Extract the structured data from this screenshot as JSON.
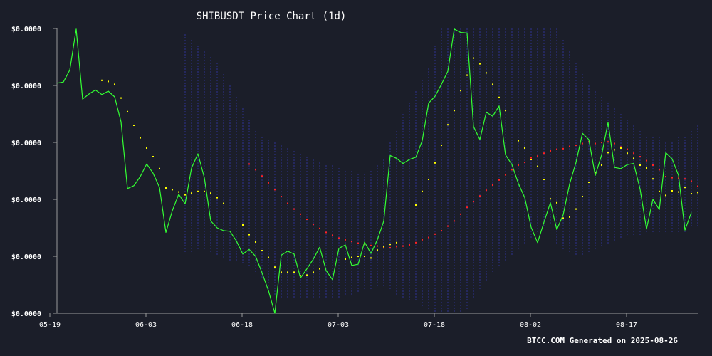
{
  "chart_data": {
    "type": "line",
    "title": "SHIBUSDT Price Chart (1d)",
    "footer": "BTCC.COM Generated on 2025-08-26",
    "x": {
      "start_date": "2025-05-19",
      "ticks": [
        {
          "day": 0,
          "label": "05-19"
        },
        {
          "day": 15,
          "label": "06-03"
        },
        {
          "day": 30,
          "label": "06-18"
        },
        {
          "day": 45,
          "label": "07-03"
        },
        {
          "day": 60,
          "label": "07-18"
        },
        {
          "day": 75,
          "label": "08-02"
        },
        {
          "day": 90,
          "label": "08-17"
        }
      ],
      "range": [
        0,
        100
      ]
    },
    "y": {
      "range": [
        0,
        5
      ],
      "ticks": [
        {
          "v": 0,
          "label": "$0.0000"
        },
        {
          "v": 1,
          "label": "$0.0000"
        },
        {
          "v": 2,
          "label": "$0.0000"
        },
        {
          "v": 3,
          "label": "$0.0000"
        },
        {
          "v": 4,
          "label": "$0.0000"
        },
        {
          "v": 5,
          "label": "$0.0000"
        }
      ]
    },
    "series": [
      {
        "name": "",
        "kind": "price",
        "color": "#33ff33",
        "values": [
          4.04,
          4.06,
          4.27,
          4.99,
          3.76,
          3.85,
          3.92,
          3.84,
          3.9,
          3.8,
          3.36,
          2.19,
          2.24,
          2.4,
          2.62,
          2.46,
          2.21,
          1.42,
          1.8,
          2.09,
          1.92,
          2.55,
          2.8,
          2.38,
          1.62,
          1.5,
          1.45,
          1.44,
          1.27,
          1.04,
          1.12,
          1.0,
          0.71,
          0.4,
          0.0,
          1.02,
          1.09,
          1.04,
          0.62,
          0.78,
          0.95,
          1.16,
          0.75,
          0.59,
          1.14,
          1.2,
          0.84,
          0.86,
          1.25,
          1.05,
          1.29,
          1.62,
          2.77,
          2.72,
          2.63,
          2.7,
          2.74,
          3.03,
          3.69,
          3.81,
          4.02,
          4.25,
          4.99,
          4.93,
          4.92,
          3.28,
          3.05,
          3.53,
          3.46,
          3.64,
          2.78,
          2.61,
          2.28,
          2.03,
          1.51,
          1.24,
          1.6,
          1.94,
          1.47,
          1.73,
          2.27,
          2.65,
          3.16,
          3.05,
          2.42,
          2.78,
          3.35,
          2.56,
          2.54,
          2.61,
          2.63,
          2.18,
          1.48,
          2.0,
          1.82,
          2.82,
          2.71,
          2.42,
          1.46,
          1.77
        ]
      },
      {
        "name": "",
        "kind": "sar-below",
        "color": "#ffff00",
        "points": [
          [
            7,
            4.09
          ],
          [
            8,
            4.07
          ],
          [
            9,
            4.02
          ],
          [
            10,
            3.78
          ],
          [
            11,
            3.54
          ],
          [
            12,
            3.3
          ],
          [
            13,
            3.08
          ],
          [
            14,
            2.9
          ],
          [
            15,
            2.75
          ],
          [
            16,
            2.54
          ],
          [
            17,
            2.2
          ],
          [
            18,
            2.17
          ],
          [
            19,
            2.13
          ],
          [
            20,
            2.08
          ],
          [
            21,
            2.11
          ],
          [
            22,
            2.14
          ],
          [
            23,
            2.14
          ],
          [
            24,
            2.11
          ],
          [
            25,
            2.03
          ],
          [
            26,
            1.93
          ],
          [
            29,
            1.55
          ],
          [
            30,
            1.38
          ],
          [
            31,
            1.25
          ],
          [
            32,
            1.1
          ],
          [
            33,
            0.98
          ],
          [
            34,
            0.81
          ],
          [
            35,
            0.72
          ],
          [
            36,
            0.72
          ],
          [
            37,
            0.72
          ],
          [
            38,
            0.66
          ],
          [
            39,
            0.67
          ],
          [
            40,
            0.72
          ],
          [
            41,
            0.78
          ],
          [
            45,
            0.95
          ],
          [
            46,
            0.98
          ],
          [
            47,
            1.0
          ],
          [
            48,
            1.0
          ],
          [
            49,
            0.97
          ],
          [
            50,
            1.11
          ],
          [
            51,
            1.17
          ],
          [
            52,
            1.21
          ],
          [
            53,
            1.24
          ],
          [
            56,
            1.9
          ],
          [
            57,
            2.14
          ],
          [
            58,
            2.35
          ],
          [
            59,
            2.64
          ],
          [
            60,
            2.95
          ],
          [
            61,
            3.31
          ],
          [
            62,
            3.56
          ],
          [
            63,
            3.91
          ],
          [
            64,
            4.18
          ],
          [
            65,
            4.48
          ],
          [
            66,
            4.38
          ],
          [
            67,
            4.22
          ],
          [
            68,
            4.02
          ],
          [
            69,
            3.79
          ],
          [
            70,
            3.56
          ],
          [
            72,
            3.03
          ],
          [
            73,
            2.9
          ],
          [
            74,
            2.7
          ],
          [
            75,
            2.58
          ],
          [
            76,
            2.35
          ],
          [
            77,
            2.01
          ],
          [
            78,
            1.94
          ],
          [
            79,
            1.67
          ],
          [
            80,
            1.69
          ],
          [
            81,
            1.83
          ],
          [
            82,
            2.05
          ],
          [
            83,
            2.3
          ],
          [
            84,
            2.47
          ],
          [
            85,
            2.6
          ],
          [
            86,
            2.82
          ],
          [
            87,
            2.87
          ],
          [
            88,
            2.9
          ],
          [
            89,
            2.81
          ],
          [
            90,
            2.72
          ],
          [
            91,
            2.6
          ],
          [
            92,
            2.55
          ],
          [
            93,
            2.36
          ],
          [
            94,
            2.14
          ],
          [
            95,
            2.07
          ],
          [
            96,
            2.15
          ],
          [
            97,
            2.13
          ],
          [
            98,
            2.21
          ],
          [
            99,
            2.1
          ],
          [
            100,
            2.12
          ]
        ]
      },
      {
        "name": "",
        "kind": "sar-above",
        "color": "#ff2222",
        "points": [
          [
            30,
            2.62
          ],
          [
            31,
            2.52
          ],
          [
            32,
            2.41
          ],
          [
            33,
            2.29
          ],
          [
            34,
            2.17
          ],
          [
            35,
            2.05
          ],
          [
            36,
            1.93
          ],
          [
            37,
            1.83
          ],
          [
            38,
            1.74
          ],
          [
            39,
            1.65
          ],
          [
            40,
            1.56
          ],
          [
            41,
            1.49
          ],
          [
            42,
            1.42
          ],
          [
            43,
            1.37
          ],
          [
            44,
            1.32
          ],
          [
            45,
            1.29
          ],
          [
            46,
            1.26
          ],
          [
            47,
            1.23
          ],
          [
            48,
            1.21
          ],
          [
            49,
            1.19
          ],
          [
            50,
            1.18
          ],
          [
            51,
            1.15
          ],
          [
            52,
            1.15
          ],
          [
            53,
            1.17
          ],
          [
            54,
            1.18
          ],
          [
            55,
            1.2
          ],
          [
            56,
            1.24
          ],
          [
            57,
            1.29
          ],
          [
            58,
            1.33
          ],
          [
            59,
            1.39
          ],
          [
            60,
            1.45
          ],
          [
            61,
            1.53
          ],
          [
            62,
            1.62
          ],
          [
            63,
            1.74
          ],
          [
            64,
            1.86
          ],
          [
            65,
            1.96
          ],
          [
            66,
            2.06
          ],
          [
            67,
            2.16
          ],
          [
            68,
            2.25
          ],
          [
            69,
            2.34
          ],
          [
            70,
            2.43
          ],
          [
            71,
            2.52
          ],
          [
            72,
            2.6
          ],
          [
            73,
            2.65
          ],
          [
            74,
            2.73
          ],
          [
            75,
            2.76
          ],
          [
            76,
            2.81
          ],
          [
            77,
            2.85
          ],
          [
            78,
            2.88
          ],
          [
            79,
            2.89
          ],
          [
            80,
            2.93
          ],
          [
            81,
            2.95
          ],
          [
            82,
            2.98
          ],
          [
            83,
            3.01
          ],
          [
            84,
            2.98
          ],
          [
            85,
            3.0
          ],
          [
            86,
            3.01
          ],
          [
            87,
            2.98
          ],
          [
            88,
            2.92
          ],
          [
            89,
            2.88
          ],
          [
            90,
            2.81
          ],
          [
            91,
            2.75
          ],
          [
            92,
            2.68
          ],
          [
            93,
            2.6
          ],
          [
            94,
            2.52
          ],
          [
            95,
            2.4
          ],
          [
            96,
            2.38
          ],
          [
            97,
            2.37
          ],
          [
            98,
            2.36
          ],
          [
            99,
            2.32
          ],
          [
            100,
            2.23
          ]
        ]
      },
      {
        "name": "",
        "kind": "band",
        "color": "#2c2f80",
        "points": [
          [
            20,
            4.9,
            1.05
          ],
          [
            21,
            4.8,
            1.05
          ],
          [
            22,
            4.7,
            1.1
          ],
          [
            23,
            4.6,
            1.1
          ],
          [
            24,
            4.5,
            1.05
          ],
          [
            25,
            4.4,
            1.0
          ],
          [
            26,
            4.2,
            0.95
          ],
          [
            27,
            4.0,
            0.9
          ],
          [
            28,
            3.8,
            0.9
          ],
          [
            29,
            3.6,
            0.85
          ],
          [
            30,
            3.4,
            0.8
          ],
          [
            31,
            3.2,
            0.7
          ],
          [
            32,
            3.1,
            0.6
          ],
          [
            33,
            3.05,
            0.4
          ],
          [
            34,
            3.0,
            0.3
          ],
          [
            35,
            2.95,
            0.25
          ],
          [
            36,
            2.9,
            0.25
          ],
          [
            37,
            2.85,
            0.25
          ],
          [
            38,
            2.8,
            0.25
          ],
          [
            39,
            2.75,
            0.25
          ],
          [
            40,
            2.7,
            0.25
          ],
          [
            41,
            2.65,
            0.25
          ],
          [
            42,
            2.6,
            0.25
          ],
          [
            43,
            2.6,
            0.25
          ],
          [
            44,
            2.55,
            0.25
          ],
          [
            45,
            2.5,
            0.3
          ],
          [
            46,
            2.5,
            0.3
          ],
          [
            47,
            2.45,
            0.35
          ],
          [
            48,
            2.45,
            0.4
          ],
          [
            49,
            2.5,
            0.4
          ],
          [
            50,
            2.6,
            0.45
          ],
          [
            51,
            2.7,
            0.45
          ],
          [
            52,
            3.0,
            0.4
          ],
          [
            53,
            3.2,
            0.3
          ],
          [
            54,
            3.5,
            0.25
          ],
          [
            55,
            3.7,
            0.2
          ],
          [
            56,
            3.9,
            0.2
          ],
          [
            57,
            4.1,
            0.1
          ],
          [
            58,
            4.3,
            0.05
          ],
          [
            59,
            4.7,
            0.0
          ],
          [
            60,
            5.0,
            0.0
          ],
          [
            61,
            5.0,
            0.0
          ],
          [
            62,
            5.0,
            0.0
          ],
          [
            63,
            5.0,
            0.0
          ],
          [
            64,
            5.0,
            0.05
          ],
          [
            65,
            5.0,
            0.25
          ],
          [
            66,
            5.0,
            0.4
          ],
          [
            67,
            5.0,
            0.55
          ],
          [
            68,
            5.0,
            0.7
          ],
          [
            69,
            5.0,
            0.8
          ],
          [
            70,
            5.0,
            0.9
          ],
          [
            71,
            5.0,
            1.0
          ],
          [
            72,
            5.0,
            1.1
          ],
          [
            73,
            5.0,
            1.2
          ],
          [
            74,
            5.0,
            1.3
          ],
          [
            75,
            5.0,
            1.4
          ],
          [
            76,
            5.0,
            1.5
          ],
          [
            77,
            5.0,
            1.55
          ],
          [
            78,
            5.0,
            1.2
          ],
          [
            79,
            4.8,
            1.1
          ],
          [
            80,
            4.6,
            1.05
          ],
          [
            81,
            4.4,
            1.0
          ],
          [
            82,
            4.2,
            1.0
          ],
          [
            83,
            4.0,
            1.05
          ],
          [
            84,
            3.9,
            1.1
          ],
          [
            85,
            3.8,
            1.15
          ],
          [
            86,
            3.7,
            1.2
          ],
          [
            87,
            3.6,
            1.25
          ],
          [
            88,
            3.5,
            1.3
          ],
          [
            89,
            3.4,
            1.35
          ],
          [
            90,
            3.3,
            1.35
          ],
          [
            91,
            3.2,
            1.35
          ],
          [
            92,
            3.1,
            1.4
          ],
          [
            93,
            3.1,
            1.4
          ],
          [
            94,
            3.1,
            1.4
          ],
          [
            95,
            3.0,
            1.4
          ],
          [
            96,
            3.0,
            1.4
          ],
          [
            97,
            3.1,
            1.4
          ],
          [
            98,
            3.1,
            1.4
          ],
          [
            99,
            3.2,
            1.5
          ],
          [
            100,
            3.3,
            1.5
          ]
        ]
      }
    ],
    "grid": false,
    "legend": "none",
    "colors": {
      "background": "#1b1e29",
      "axis": "#9a9a9a",
      "text": "#ffffff"
    }
  }
}
